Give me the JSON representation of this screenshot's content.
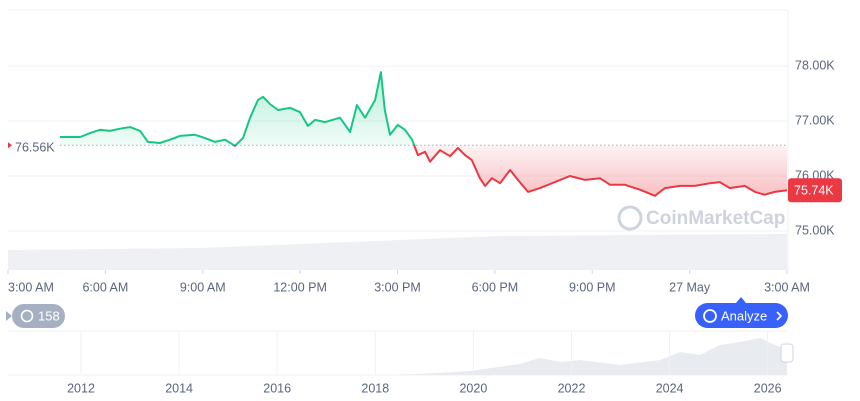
{
  "chart_data": {
    "type": "line",
    "x": [
      1.6,
      2.22,
      2.53,
      2.83,
      3.14,
      3.45,
      3.76,
      4.07,
      4.31,
      4.68,
      4.99,
      5.3,
      5.76,
      6.07,
      6.38,
      6.69,
      6.99,
      7.24,
      7.46,
      7.7,
      7.86,
      8.07,
      8.32,
      8.69,
      9.0,
      9.24,
      9.46,
      9.77,
      10.23,
      10.54,
      10.75,
      11.0,
      11.31,
      11.49,
      11.61,
      11.77,
      12.01,
      12.23,
      12.45,
      12.63,
      12.85,
      13.0,
      13.31,
      13.62,
      13.86,
      14.08,
      14.29,
      14.54,
      14.7,
      14.91,
      15.16,
      15.47,
      15.71,
      16.02,
      16.39,
      16.85,
      17.31,
      17.78,
      18.24,
      18.55,
      19.01,
      19.47,
      19.93,
      20.24,
      20.7,
      21.16,
      21.63,
      21.93,
      22.24,
      22.7,
      23.01,
      23.31,
      23.62,
      24.0
    ],
    "values": [
      76710,
      76710,
      76780,
      76840,
      76820,
      76860,
      76890,
      76820,
      76620,
      76600,
      76660,
      76730,
      76750,
      76690,
      76620,
      76660,
      76550,
      76690,
      77060,
      77380,
      77440,
      77310,
      77200,
      77240,
      77160,
      76910,
      77020,
      76980,
      77060,
      76800,
      77290,
      77060,
      77380,
      77890,
      77200,
      76750,
      76930,
      76840,
      76660,
      76380,
      76440,
      76260,
      76470,
      76360,
      76510,
      76380,
      76290,
      75960,
      75820,
      75960,
      75870,
      76110,
      75930,
      75710,
      75780,
      75890,
      76000,
      75930,
      75960,
      75840,
      75840,
      75750,
      75640,
      75780,
      75820,
      75820,
      75870,
      75890,
      75780,
      75820,
      75710,
      75660,
      75710,
      75740
    ],
    "color_up": "#16c784",
    "color_down": "#ea3943",
    "baseline": {
      "value": 76560,
      "label": "76.56K"
    },
    "last_price": {
      "value": 75740,
      "label": "75.74K"
    },
    "xlim": [
      0,
      24
    ],
    "xticks": [
      {
        "value": 0,
        "label": "3:00 AM"
      },
      {
        "value": 3,
        "label": "6:00 AM"
      },
      {
        "value": 6,
        "label": "9:00 AM"
      },
      {
        "value": 9,
        "label": "12:00 PM"
      },
      {
        "value": 12,
        "label": "3:00 PM"
      },
      {
        "value": 15,
        "label": "6:00 PM"
      },
      {
        "value": 18,
        "label": "9:00 PM"
      },
      {
        "value": 21,
        "label": "27 May"
      },
      {
        "value": 24,
        "label": "3:00 AM"
      }
    ],
    "ylim": [
      74290,
      79020
    ],
    "yticks": [
      {
        "value": 75000,
        "label": "75.00K"
      },
      {
        "value": 76000,
        "label": "76.00K"
      },
      {
        "value": 77000,
        "label": "77.00K"
      },
      {
        "value": 78000,
        "label": "78.00K"
      }
    ],
    "grid": true,
    "watermark": "CoinMarketCap"
  },
  "ui": {
    "badge": "158",
    "button": "Analyze",
    "navigator_years": [
      "2012",
      "2014",
      "2016",
      "2018",
      "2020",
      "2022",
      "2024",
      "2026"
    ]
  }
}
